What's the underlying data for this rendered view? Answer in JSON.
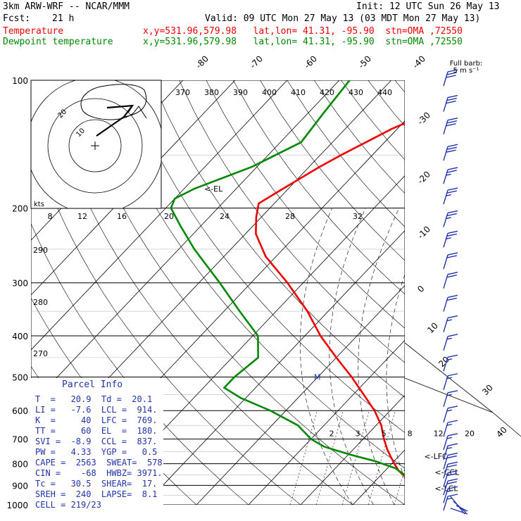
{
  "header": {
    "model": "3km ARW-WRF -- NCAR/MMM",
    "init": "Init: 12 UTC Sun 26 May 13",
    "fcst_label": "Fcst:",
    "fcst_value": "21 h",
    "valid": "Valid: 09 UTC Mon 27 May 13 (03 MDT Mon 27 May 13)",
    "temp_label": "Temperature",
    "dew_label": "Dewpoint temperature",
    "temp_info": "x,y=531.96,579.98   lat,lon= 41.31, -95.90  stn=OMA ,72550",
    "dew_info": "x,y=531.96,579.98   lat,lon= 41.31, -95.90  stn=OMA ,72550"
  },
  "colors": {
    "temperature": "#ee0000",
    "dewpoint": "#008800",
    "wind": "#2233aa",
    "grid": "#000000"
  },
  "parcel_info": {
    "title": "Parcel Info",
    "rows": [
      "T  =   20.9  Td =  20.1",
      "LI =   -7.6  LCL =  914.",
      "K  =     40  LFC =  769.",
      "TT =     60  EL  =  180.",
      "SVI =  -8.9  CCL =  837.",
      "PW =   4.33  YGP =   0.5",
      "CAPE =  2563  SWEAT=  578",
      "CIN =    -68  HWBZ= 3971.",
      "Tc =   30.5  SHEAR=  17.",
      "SREH =  240  LAPSE=  8.1",
      "CELL = 219/23"
    ]
  },
  "wind_barb_title": "Full barb:",
  "wind_barb_unit": "5 m s⁻¹",
  "chart_data": {
    "type": "line",
    "title": "",
    "y_axis": "pressure (hPa), log scale",
    "pressure_ticks": [
      100,
      200,
      300,
      400,
      500,
      600,
      700,
      800,
      900,
      1000
    ],
    "temperature_isotherm_labels": [
      "-80",
      "-70",
      "-60",
      "-50",
      "-40",
      "-30",
      "-20",
      "-10",
      "0",
      "10",
      "20",
      "30",
      "40"
    ],
    "theta_labels": [
      "370",
      "380",
      "390",
      "400",
      "410",
      "420",
      "430",
      "440"
    ],
    "theta_left_labels": [
      "290",
      "280",
      "270"
    ],
    "mixing_ratio_labels": [
      "2",
      "3",
      "5",
      "8",
      "12",
      "20"
    ],
    "hodograph": {
      "speed_unit": "kts",
      "ring_labels": [
        "10",
        "20"
      ],
      "axis_labels": [
        "8",
        "12",
        "16",
        "20",
        "24",
        "28",
        "32"
      ]
    },
    "levels": [
      {
        "name": "EL",
        "label": "<-EL",
        "p": 180
      },
      {
        "name": "M",
        "label": "M",
        "p": 500
      },
      {
        "name": "LFC",
        "label": "<-LFC",
        "p": 769
      },
      {
        "name": "CCL",
        "label": "<-CCL",
        "p": 837
      },
      {
        "name": "LCL",
        "label": "<-LCL",
        "p": 914
      }
    ],
    "series": [
      {
        "name": "Temperature",
        "p": [
          965,
          950,
          930,
          900,
          860,
          830,
          800,
          770,
          740,
          700,
          650,
          600,
          550,
          500,
          450,
          400,
          350,
          300,
          260,
          230,
          210,
          195,
          180,
          160,
          150,
          130,
          115,
          100
        ],
        "t": [
          21,
          22,
          21,
          18,
          15,
          12.5,
          10.5,
          8.5,
          6.5,
          4,
          1,
          -3,
          -8,
          -13.5,
          -20,
          -27,
          -34,
          -43,
          -52,
          -58,
          -61,
          -63,
          -61,
          -58,
          -56,
          -51,
          -45,
          -42
        ]
      },
      {
        "name": "Dewpoint temperature",
        "p": [
          965,
          950,
          930,
          900,
          870,
          845,
          820,
          790,
          760,
          730,
          700,
          650,
          600,
          560,
          530,
          500,
          450,
          400,
          350,
          300,
          250,
          220,
          200,
          190,
          180,
          160,
          140,
          120,
          100
        ],
        "t": [
          20,
          20.5,
          20,
          18.5,
          16,
          14,
          11.5,
          6.5,
          0,
          -6,
          -10,
          -15,
          -23,
          -31,
          -36,
          -36,
          -35,
          -39,
          -47,
          -56,
          -67,
          -74,
          -79,
          -80,
          -78,
          -71,
          -66,
          -67,
          -68
        ]
      }
    ],
    "wind_barbs": [
      {
        "p": 100,
        "spd": 30
      },
      {
        "p": 115,
        "spd": 30
      },
      {
        "p": 130,
        "spd": 30
      },
      {
        "p": 150,
        "spd": 30
      },
      {
        "p": 170,
        "spd": 25
      },
      {
        "p": 190,
        "spd": 25
      },
      {
        "p": 215,
        "spd": 25
      },
      {
        "p": 240,
        "spd": 25
      },
      {
        "p": 270,
        "spd": 20
      },
      {
        "p": 300,
        "spd": 20
      },
      {
        "p": 340,
        "spd": 20
      },
      {
        "p": 380,
        "spd": 15
      },
      {
        "p": 420,
        "spd": 15
      },
      {
        "p": 470,
        "spd": 15
      },
      {
        "p": 520,
        "spd": 15
      },
      {
        "p": 570,
        "spd": 15
      },
      {
        "p": 620,
        "spd": 15
      },
      {
        "p": 670,
        "spd": 15
      },
      {
        "p": 720,
        "spd": 15
      },
      {
        "p": 760,
        "spd": 15
      },
      {
        "p": 800,
        "spd": 20
      },
      {
        "p": 840,
        "spd": 20
      },
      {
        "p": 880,
        "spd": 20
      },
      {
        "p": 920,
        "spd": 20
      },
      {
        "p": 960,
        "spd": 15
      },
      {
        "p": 1000,
        "spd": 15
      }
    ]
  }
}
